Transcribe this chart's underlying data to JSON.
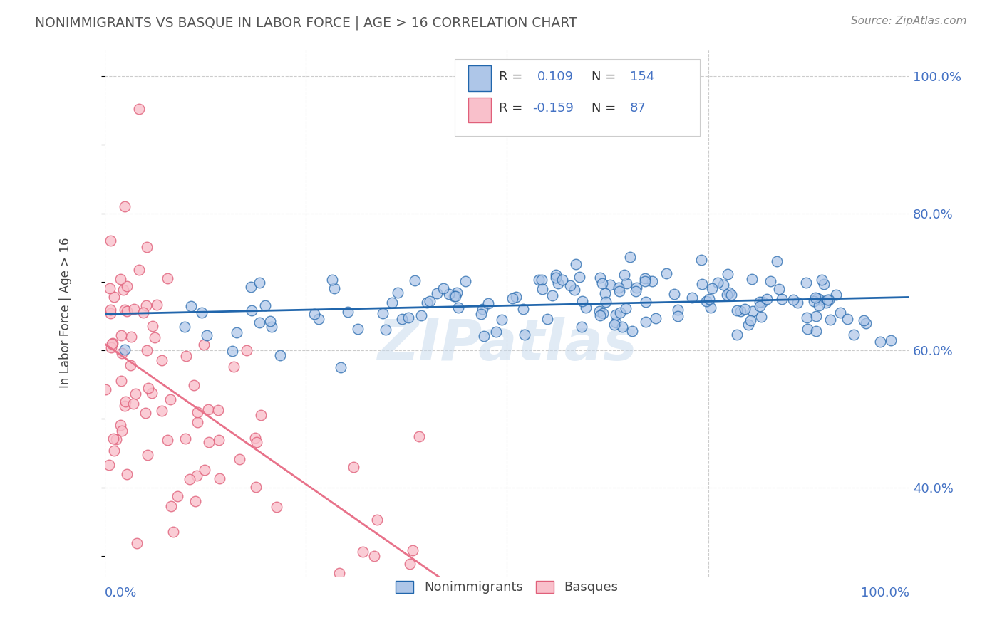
{
  "title": "NONIMMIGRANTS VS BASQUE IN LABOR FORCE | AGE > 16 CORRELATION CHART",
  "source": "Source: ZipAtlas.com",
  "legend_label1": "Nonimmigrants",
  "legend_label2": "Basques",
  "r1": 0.109,
  "n1": 154,
  "r2": -0.159,
  "n2": 87,
  "blue_fill": "#aec6e8",
  "blue_edge": "#2166ac",
  "pink_fill": "#f9c0cb",
  "pink_edge": "#e0607a",
  "pink_line_solid": "#e8728a",
  "watermark": "ZIPatlas",
  "background_color": "#ffffff",
  "grid_color": "#cccccc",
  "axis_label_color": "#4472c4",
  "title_color": "#555555",
  "source_color": "#888888",
  "ylabel": "In Labor Force | Age > 16"
}
